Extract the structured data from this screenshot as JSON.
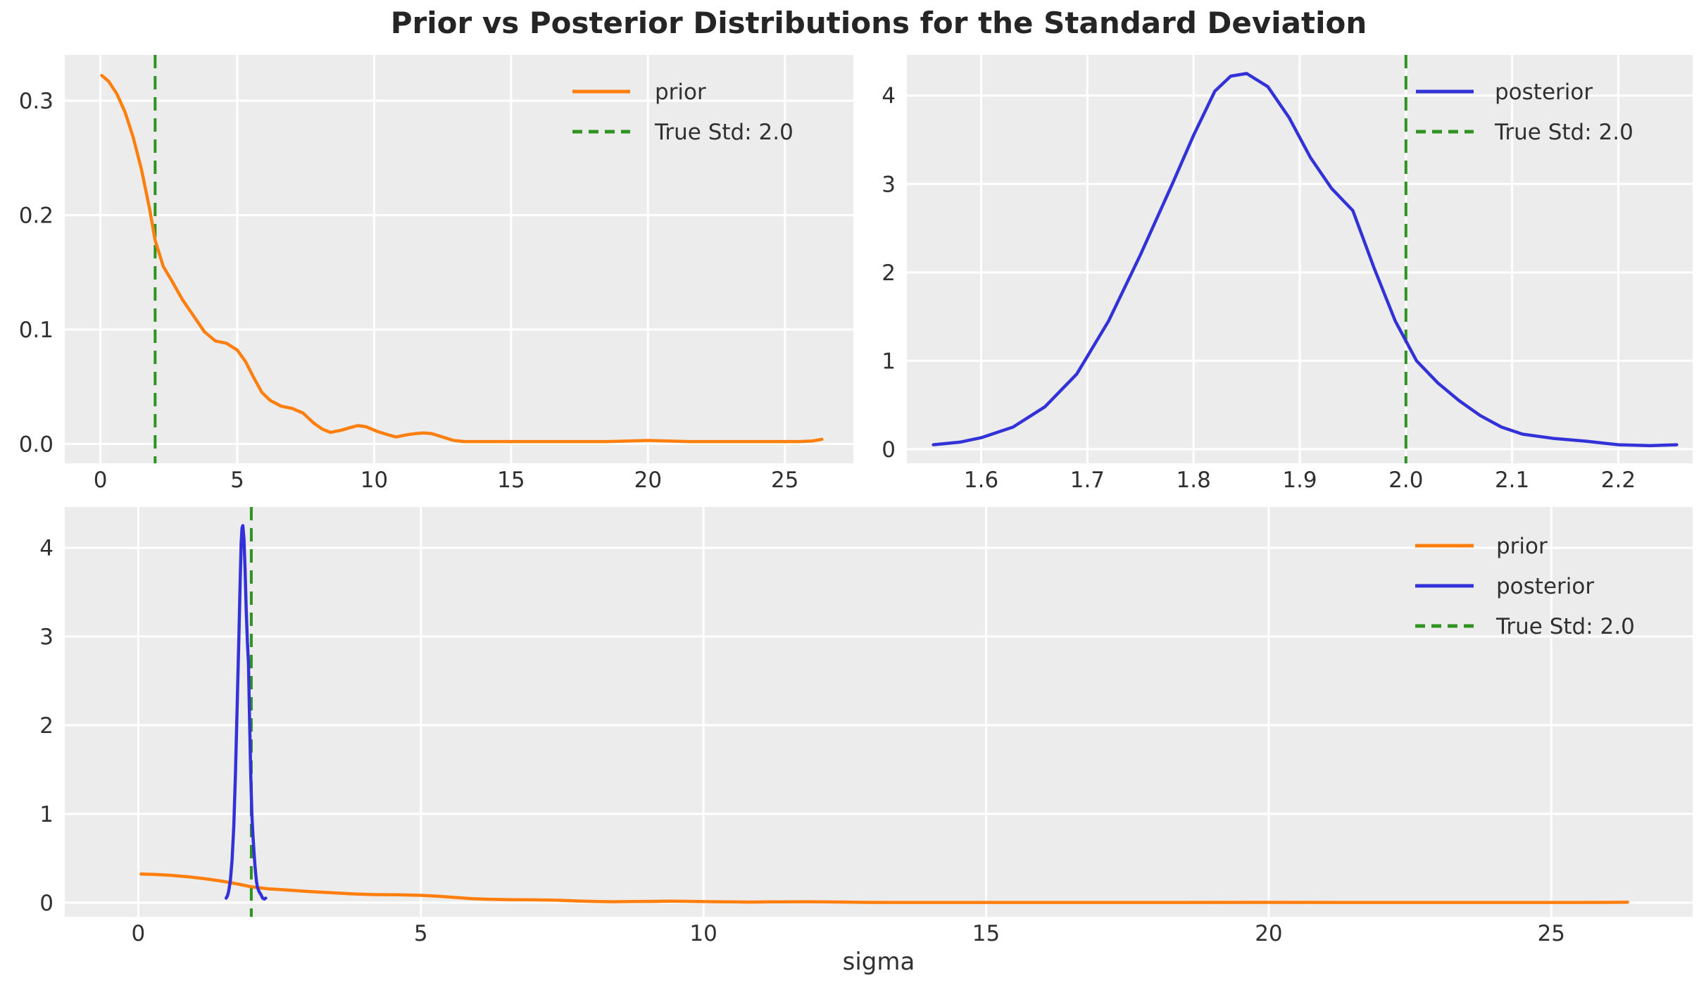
{
  "title": "Prior vs Posterior Distributions for the Standard Deviation",
  "xlabel": "sigma",
  "true_std": 2.0,
  "colors": {
    "prior": "#ff7f0e",
    "posterior": "#3232d8",
    "true_std": "#2e9320",
    "axes_bg": "#ececec",
    "grid": "#ffffff",
    "tick_text": "#303030",
    "title_text": "#252525"
  },
  "line_styles": {
    "prior": {
      "color": "#ff7f0e",
      "dash": null
    },
    "posterior": {
      "color": "#3232d8",
      "dash": null
    },
    "true_std": {
      "color": "#2e9320",
      "dash": [
        14,
        9
      ]
    }
  },
  "series_data": {
    "prior": {
      "x": [
        0.05,
        0.3,
        0.6,
        0.9,
        1.2,
        1.5,
        1.8,
        2.0,
        2.3,
        2.6,
        3.0,
        3.4,
        3.8,
        4.2,
        4.6,
        5.0,
        5.3,
        5.6,
        5.9,
        6.2,
        6.6,
        7.0,
        7.4,
        7.8,
        8.1,
        8.4,
        8.8,
        9.1,
        9.4,
        9.7,
        10.1,
        10.5,
        10.8,
        11.2,
        11.5,
        11.8,
        12.1,
        12.5,
        12.9,
        13.3,
        13.8,
        14.5,
        15.5,
        17.0,
        18.5,
        20.0,
        21.5,
        23.0,
        24.5,
        25.5,
        26.0,
        26.35
      ],
      "y": [
        0.322,
        0.317,
        0.306,
        0.29,
        0.268,
        0.24,
        0.205,
        0.178,
        0.155,
        0.143,
        0.126,
        0.112,
        0.098,
        0.09,
        0.088,
        0.082,
        0.072,
        0.058,
        0.045,
        0.038,
        0.033,
        0.031,
        0.027,
        0.018,
        0.013,
        0.01,
        0.012,
        0.014,
        0.016,
        0.015,
        0.011,
        0.008,
        0.006,
        0.008,
        0.009,
        0.0095,
        0.009,
        0.006,
        0.003,
        0.002,
        0.002,
        0.002,
        0.002,
        0.002,
        0.002,
        0.003,
        0.002,
        0.002,
        0.002,
        0.002,
        0.0025,
        0.004
      ]
    },
    "posterior": {
      "x": [
        1.555,
        1.58,
        1.6,
        1.63,
        1.66,
        1.69,
        1.72,
        1.75,
        1.78,
        1.8,
        1.82,
        1.835,
        1.85,
        1.87,
        1.89,
        1.91,
        1.93,
        1.95,
        1.97,
        1.99,
        2.01,
        2.03,
        2.05,
        2.07,
        2.09,
        2.11,
        2.14,
        2.17,
        2.2,
        2.23,
        2.255
      ],
      "y": [
        0.05,
        0.08,
        0.13,
        0.25,
        0.48,
        0.85,
        1.45,
        2.2,
        3.0,
        3.55,
        4.05,
        4.22,
        4.25,
        4.1,
        3.75,
        3.3,
        2.95,
        2.7,
        2.05,
        1.45,
        1.0,
        0.75,
        0.55,
        0.38,
        0.25,
        0.17,
        0.12,
        0.09,
        0.05,
        0.04,
        0.05
      ]
    }
  },
  "chart_data": [
    {
      "id": "prior-panel",
      "type": "line",
      "xlim": [
        -1.3,
        27.5
      ],
      "ylim": [
        -0.017,
        0.34
      ],
      "xticks": {
        "values": [
          0,
          5,
          10,
          15,
          20,
          25
        ],
        "labels": [
          "0",
          "5",
          "10",
          "15",
          "20",
          "25"
        ]
      },
      "yticks": {
        "values": [
          0.0,
          0.1,
          0.2,
          0.3
        ],
        "labels": [
          "0.0",
          "0.1",
          "0.2",
          "0.3"
        ]
      },
      "grid": true,
      "series": [
        "prior"
      ],
      "vline": {
        "x": 2.0,
        "style": "true_std"
      },
      "legend_loc": "upper right",
      "legend": [
        {
          "label": "prior",
          "style": "prior"
        },
        {
          "label": "True Std: 2.0",
          "style": "true_std"
        }
      ]
    },
    {
      "id": "posterior-panel",
      "type": "line",
      "xlim": [
        1.53,
        2.27
      ],
      "ylim": [
        -0.16,
        4.46
      ],
      "xticks": {
        "values": [
          1.6,
          1.7,
          1.8,
          1.9,
          2.0,
          2.1,
          2.2
        ],
        "labels": [
          "1.6",
          "1.7",
          "1.8",
          "1.9",
          "2.0",
          "2.1",
          "2.2"
        ]
      },
      "yticks": {
        "values": [
          0,
          1,
          2,
          3,
          4
        ],
        "labels": [
          "0",
          "1",
          "2",
          "3",
          "4"
        ]
      },
      "grid": true,
      "series": [
        "posterior"
      ],
      "vline": {
        "x": 2.0,
        "style": "true_std"
      },
      "legend_loc": "upper right",
      "legend": [
        {
          "label": "posterior",
          "style": "posterior"
        },
        {
          "label": "True Std: 2.0",
          "style": "true_std"
        }
      ]
    },
    {
      "id": "combined-panel",
      "type": "line",
      "xlim": [
        -1.3,
        27.5
      ],
      "ylim": [
        -0.16,
        4.46
      ],
      "xticks": {
        "values": [
          0,
          5,
          10,
          15,
          20,
          25
        ],
        "labels": [
          "0",
          "5",
          "10",
          "15",
          "20",
          "25"
        ]
      },
      "yticks": {
        "values": [
          0,
          1,
          2,
          3,
          4
        ],
        "labels": [
          "0",
          "1",
          "2",
          "3",
          "4"
        ]
      },
      "grid": true,
      "series": [
        "prior",
        "posterior"
      ],
      "vline": {
        "x": 2.0,
        "style": "true_std"
      },
      "xlabel": "sigma",
      "legend_loc": "upper right",
      "legend": [
        {
          "label": "prior",
          "style": "prior"
        },
        {
          "label": "posterior",
          "style": "posterior"
        },
        {
          "label": "True Std: 2.0",
          "style": "true_std"
        }
      ]
    }
  ]
}
